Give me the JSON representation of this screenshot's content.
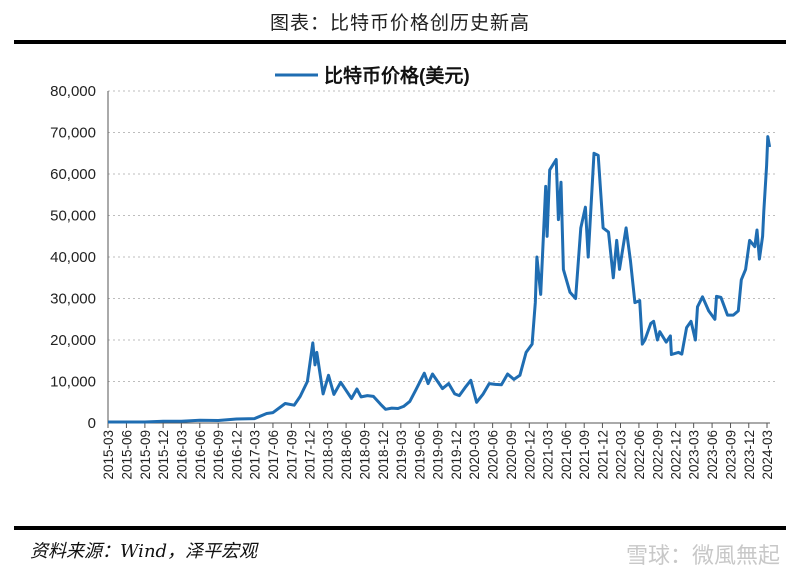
{
  "header": {
    "title": "图表：比特币价格创历史新高"
  },
  "footer": {
    "source": "资料来源：Wind，泽平宏观",
    "watermark": "雪球：微風無起"
  },
  "colors": {
    "series": "#1f6db2",
    "grid": "#bdbdbd",
    "axis": "#555555"
  },
  "chart_data": {
    "type": "line",
    "title": "",
    "xlabel": "",
    "ylabel": "",
    "ylim": [
      0,
      80000
    ],
    "yticks": [
      0,
      10000,
      20000,
      30000,
      40000,
      50000,
      60000,
      70000,
      80000
    ],
    "ytick_labels": [
      "0",
      "10,000",
      "20,000",
      "30,000",
      "40,000",
      "50,000",
      "60,000",
      "70,000",
      "80,000"
    ],
    "xtick_labels": [
      "2015-03",
      "2015-06",
      "2015-09",
      "2015-12",
      "2016-03",
      "2016-06",
      "2016-09",
      "2016-12",
      "2017-03",
      "2017-06",
      "2017-09",
      "2017-12",
      "2018-03",
      "2018-06",
      "2018-09",
      "2018-12",
      "2019-03",
      "2019-06",
      "2019-09",
      "2019-12",
      "2020-03",
      "2020-06",
      "2020-09",
      "2020-12",
      "2021-03",
      "2021-06",
      "2021-09",
      "2021-12",
      "2022-03",
      "2022-06",
      "2022-09",
      "2022-12",
      "2023-03",
      "2023-06",
      "2023-09",
      "2023-12",
      "2024-03"
    ],
    "grid": "horizontal dotted",
    "legend": "top-center",
    "series": [
      {
        "name": "比特币价格(美元)",
        "points": [
          [
            "2015-03-01",
            250
          ],
          [
            "2015-06-01",
            250
          ],
          [
            "2015-09-01",
            235
          ],
          [
            "2015-12-01",
            430
          ],
          [
            "2016-03-01",
            415
          ],
          [
            "2016-06-01",
            670
          ],
          [
            "2016-09-01",
            610
          ],
          [
            "2016-12-01",
            960
          ],
          [
            "2017-03-01",
            1070
          ],
          [
            "2017-05-01",
            2300
          ],
          [
            "2017-06-01",
            2500
          ],
          [
            "2017-08-01",
            4700
          ],
          [
            "2017-09-15",
            4300
          ],
          [
            "2017-10-15",
            6400
          ],
          [
            "2017-11-20",
            10000
          ],
          [
            "2017-12-17",
            19300
          ],
          [
            "2017-12-28",
            14000
          ],
          [
            "2018-01-06",
            17000
          ],
          [
            "2018-02-06",
            7000
          ],
          [
            "2018-03-05",
            11500
          ],
          [
            "2018-04-01",
            6900
          ],
          [
            "2018-05-05",
            9800
          ],
          [
            "2018-06-28",
            5900
          ],
          [
            "2018-07-25",
            8200
          ],
          [
            "2018-08-15",
            6300
          ],
          [
            "2018-09-15",
            6600
          ],
          [
            "2018-10-15",
            6400
          ],
          [
            "2018-11-20",
            4500
          ],
          [
            "2018-12-15",
            3300
          ],
          [
            "2019-01-15",
            3600
          ],
          [
            "2019-02-15",
            3500
          ],
          [
            "2019-03-15",
            4000
          ],
          [
            "2019-04-15",
            5200
          ],
          [
            "2019-05-15",
            8000
          ],
          [
            "2019-06-26",
            12000
          ],
          [
            "2019-07-15",
            9500
          ],
          [
            "2019-08-06",
            11800
          ],
          [
            "2019-09-25",
            8300
          ],
          [
            "2019-10-26",
            9500
          ],
          [
            "2019-11-25",
            7000
          ],
          [
            "2019-12-18",
            6600
          ],
          [
            "2020-01-15",
            8500
          ],
          [
            "2020-02-13",
            10300
          ],
          [
            "2020-03-13",
            5000
          ],
          [
            "2020-04-15",
            7000
          ],
          [
            "2020-05-15",
            9500
          ],
          [
            "2020-06-15",
            9300
          ],
          [
            "2020-07-15",
            9200
          ],
          [
            "2020-08-15",
            11800
          ],
          [
            "2020-09-15",
            10500
          ],
          [
            "2020-10-15",
            11500
          ],
          [
            "2020-11-15",
            17000
          ],
          [
            "2020-12-15",
            19000
          ],
          [
            "2020-12-31",
            29000
          ],
          [
            "2021-01-08",
            40000
          ],
          [
            "2021-01-27",
            31000
          ],
          [
            "2021-02-21",
            57000
          ],
          [
            "2021-02-28",
            45000
          ],
          [
            "2021-03-13",
            61000
          ],
          [
            "2021-04-14",
            63500
          ],
          [
            "2021-04-25",
            49000
          ],
          [
            "2021-05-08",
            58000
          ],
          [
            "2021-05-20",
            37000
          ],
          [
            "2021-06-22",
            31500
          ],
          [
            "2021-07-20",
            30000
          ],
          [
            "2021-08-15",
            47000
          ],
          [
            "2021-09-07",
            52000
          ],
          [
            "2021-09-21",
            40000
          ],
          [
            "2021-10-20",
            65000
          ],
          [
            "2021-11-10",
            64500
          ],
          [
            "2021-12-04",
            47000
          ],
          [
            "2021-12-31",
            46000
          ],
          [
            "2022-01-24",
            35000
          ],
          [
            "2022-02-10",
            44000
          ],
          [
            "2022-02-24",
            37000
          ],
          [
            "2022-03-29",
            47000
          ],
          [
            "2022-04-20",
            39000
          ],
          [
            "2022-05-12",
            29000
          ],
          [
            "2022-06-05",
            29500
          ],
          [
            "2022-06-18",
            19000
          ],
          [
            "2022-07-01",
            20000
          ],
          [
            "2022-07-30",
            24000
          ],
          [
            "2022-08-13",
            24500
          ],
          [
            "2022-09-01",
            20000
          ],
          [
            "2022-09-13",
            22000
          ],
          [
            "2022-10-15",
            19500
          ],
          [
            "2022-11-05",
            21000
          ],
          [
            "2022-11-10",
            16500
          ],
          [
            "2022-12-15",
            17000
          ],
          [
            "2023-01-01",
            16600
          ],
          [
            "2023-01-25",
            23000
          ],
          [
            "2023-02-16",
            24500
          ],
          [
            "2023-03-10",
            20000
          ],
          [
            "2023-03-20",
            28000
          ],
          [
            "2023-04-14",
            30400
          ],
          [
            "2023-05-15",
            27000
          ],
          [
            "2023-06-15",
            25000
          ],
          [
            "2023-06-23",
            30500
          ],
          [
            "2023-07-15",
            30300
          ],
          [
            "2023-08-17",
            26000
          ],
          [
            "2023-09-15",
            26000
          ],
          [
            "2023-10-10",
            27000
          ],
          [
            "2023-10-25",
            34500
          ],
          [
            "2023-11-15",
            37000
          ],
          [
            "2023-12-05",
            44000
          ],
          [
            "2023-12-31",
            42500
          ],
          [
            "2024-01-11",
            46500
          ],
          [
            "2024-01-23",
            39500
          ],
          [
            "2024-02-08",
            45000
          ],
          [
            "2024-02-14",
            51000
          ],
          [
            "2024-02-28",
            62000
          ],
          [
            "2024-03-05",
            69000
          ],
          [
            "2024-03-14",
            66500
          ]
        ]
      }
    ]
  }
}
